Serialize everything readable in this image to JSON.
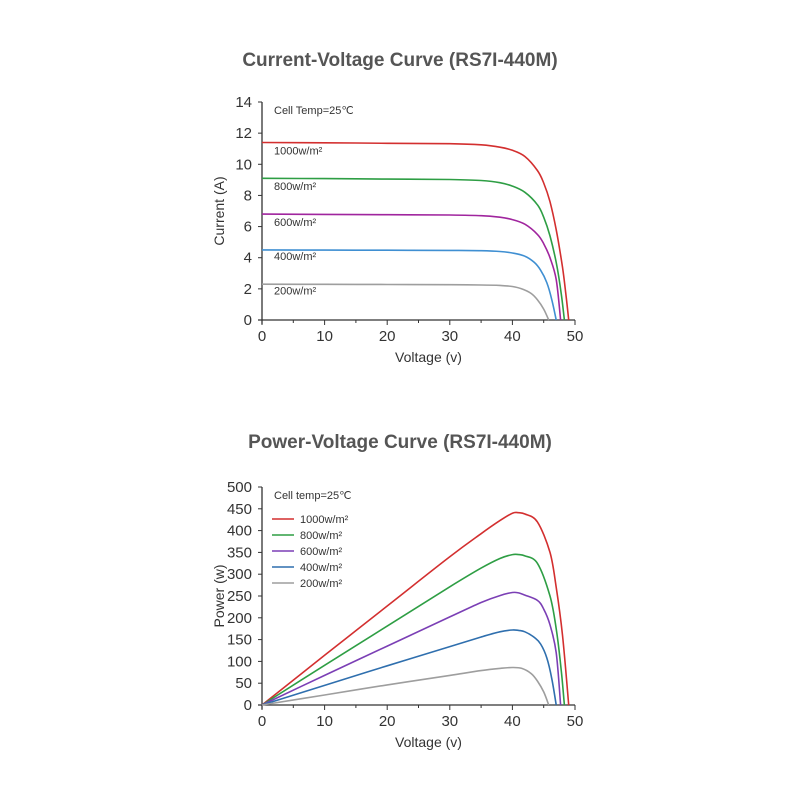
{
  "chart_data": [
    {
      "type": "line",
      "title": "Current-Voltage Curve (RS7I-440M)",
      "xlabel": "Voltage (v)",
      "ylabel": "Current (A)",
      "xlim": [
        0,
        50
      ],
      "ylim": [
        0,
        14
      ],
      "xticks": [
        "0",
        "10",
        "20",
        "30",
        "40",
        "50"
      ],
      "yticks": [
        "0",
        "2",
        "4",
        "6",
        "8",
        "10",
        "12",
        "14"
      ],
      "annotation": "Cell Temp=25℃",
      "grid": false,
      "legend": "inline labels",
      "series": [
        {
          "name": "1000w/m²",
          "color": "#d32f2f",
          "label_y": 10.9,
          "x": [
            0,
            10,
            20,
            30,
            35,
            38,
            40,
            42,
            44,
            45,
            46,
            47,
            48,
            48.5,
            49
          ],
          "y": [
            11.4,
            11.38,
            11.35,
            11.32,
            11.25,
            11.1,
            10.9,
            10.5,
            9.6,
            8.8,
            7.6,
            5.8,
            3.4,
            1.8,
            0
          ]
        },
        {
          "name": "800w/m²",
          "color": "#2e9e44",
          "label_y": 8.6,
          "x": [
            0,
            10,
            20,
            30,
            35,
            38,
            40,
            42,
            44,
            45,
            46,
            47,
            47.8,
            48.3
          ],
          "y": [
            9.1,
            9.08,
            9.05,
            9.02,
            8.96,
            8.82,
            8.6,
            8.2,
            7.4,
            6.6,
            5.4,
            3.7,
            1.7,
            0
          ]
        },
        {
          "name": "600w/m²",
          "color": "#a0259e",
          "label_y": 6.3,
          "x": [
            0,
            10,
            20,
            30,
            35,
            38,
            40,
            42,
            44,
            45,
            46,
            47,
            47.7
          ],
          "y": [
            6.8,
            6.78,
            6.76,
            6.74,
            6.7,
            6.6,
            6.45,
            6.15,
            5.5,
            4.9,
            4.0,
            2.6,
            0
          ]
        },
        {
          "name": "400w/m²",
          "color": "#3f8fd2",
          "label_y": 4.1,
          "x": [
            0,
            10,
            20,
            30,
            35,
            38,
            40,
            42,
            43.5,
            44.5,
            45.5,
            46.3,
            47
          ],
          "y": [
            4.5,
            4.49,
            4.48,
            4.47,
            4.45,
            4.4,
            4.3,
            4.1,
            3.7,
            3.2,
            2.4,
            1.3,
            0
          ]
        },
        {
          "name": "200w/m²",
          "color": "#9e9e9e",
          "label_y": 1.9,
          "x": [
            0,
            10,
            20,
            30,
            35,
            38,
            40,
            41.5,
            43,
            44,
            45,
            45.8
          ],
          "y": [
            2.3,
            2.29,
            2.28,
            2.27,
            2.25,
            2.22,
            2.15,
            2.0,
            1.7,
            1.3,
            0.7,
            0
          ]
        }
      ]
    },
    {
      "type": "line",
      "title": "Power-Voltage Curve (RS7I-440M)",
      "xlabel": "Voltage (v)",
      "ylabel": "Power (w)",
      "xlim": [
        0,
        50
      ],
      "ylim": [
        0,
        500
      ],
      "xticks": [
        "0",
        "10",
        "20",
        "30",
        "40",
        "50"
      ],
      "yticks": [
        "0",
        "50",
        "100",
        "150",
        "200",
        "250",
        "300",
        "350",
        "400",
        "450",
        "500"
      ],
      "annotation": "Cell temp=25℃",
      "grid": false,
      "legend": "top-left",
      "series": [
        {
          "name": "1000w/m²",
          "color": "#d32f2f",
          "x": [
            0,
            10,
            20,
            30,
            35,
            38,
            40,
            41,
            42,
            44,
            46,
            47,
            48,
            49
          ],
          "y": [
            0,
            114,
            227,
            340,
            393,
            423,
            440,
            441,
            438,
            420,
            350,
            270,
            160,
            0
          ]
        },
        {
          "name": "800w/m²",
          "color": "#2e9e44",
          "x": [
            0,
            10,
            20,
            30,
            35,
            38,
            40,
            41,
            42,
            44,
            46,
            47,
            47.8,
            48.3
          ],
          "y": [
            0,
            91,
            181,
            271,
            314,
            336,
            345,
            345,
            342,
            325,
            250,
            175,
            80,
            0
          ]
        },
        {
          "name": "600w/m²",
          "color": "#7b3fb5",
          "x": [
            0,
            10,
            20,
            30,
            35,
            38,
            40,
            41,
            42,
            44,
            45,
            46,
            47,
            47.7
          ],
          "y": [
            0,
            68,
            135,
            202,
            235,
            251,
            258,
            257,
            252,
            240,
            220,
            184,
            120,
            0
          ]
        },
        {
          "name": "400w/m²",
          "color": "#2f6fae",
          "x": [
            0,
            10,
            20,
            30,
            35,
            38,
            40,
            41,
            42,
            43.5,
            44.5,
            45.5,
            46.3,
            47
          ],
          "y": [
            0,
            45,
            90,
            134,
            156,
            168,
            172,
            171,
            168,
            155,
            140,
            108,
            60,
            0
          ]
        },
        {
          "name": "200w/m²",
          "color": "#9e9e9e",
          "x": [
            0,
            10,
            20,
            30,
            35,
            38,
            40,
            41.5,
            43,
            44,
            45,
            45.8
          ],
          "y": [
            0,
            23,
            46,
            68,
            79,
            84,
            86,
            84,
            72,
            55,
            30,
            0
          ]
        }
      ]
    }
  ]
}
